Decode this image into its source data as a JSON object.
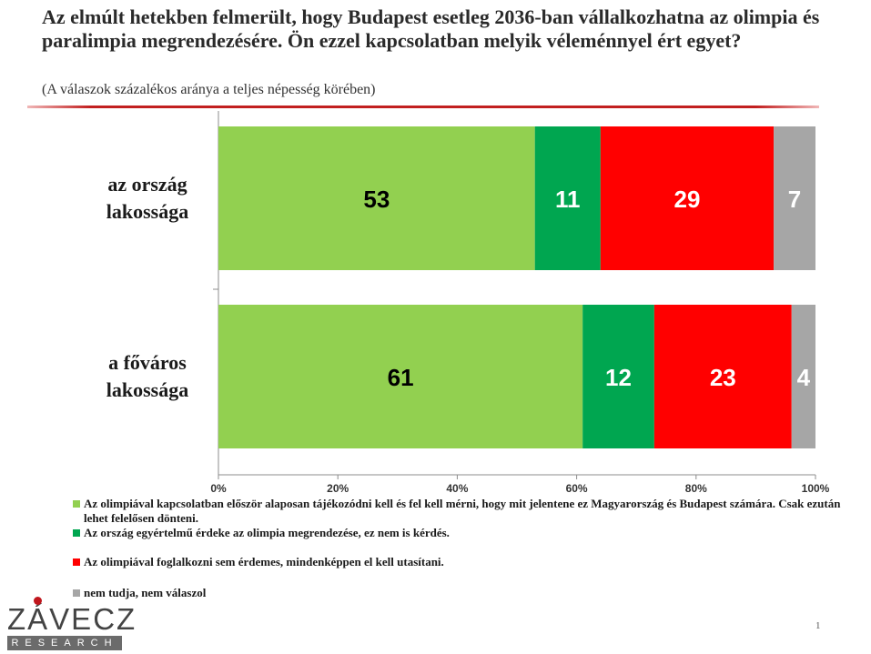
{
  "header": {
    "title": "Az elmúlt hetekben felmerült, hogy Budapest esetleg 2036-ban vállalkozhatna az olimpia és paralimpia megrendezésére. Ön ezzel kapcsolatban melyik véleménnyel ért egyet?",
    "subtitle": "(A válaszok százalékos aránya a teljes népesség körében)"
  },
  "chart_data": {
    "type": "bar",
    "orientation": "horizontal",
    "stacked": true,
    "categories": [
      "az ország lakossága",
      "a főváros lakossága"
    ],
    "category_lines": [
      [
        "az ország",
        "lakossága"
      ],
      [
        "a főváros",
        "lakossága"
      ]
    ],
    "series": [
      {
        "name": "Az olimpiával kapcsolatban először alaposan tájékozódni kell és fel kell mérni, hogy mit jelentene ez Magyarország és Budapest számára. Csak ezután lehet felelősen dönteni.",
        "values": [
          53,
          61
        ],
        "color": "#92d050",
        "label_color": "#000000"
      },
      {
        "name": "Az ország egyértelmű érdeke az olimpia megrendezése, ez nem is kérdés.",
        "values": [
          11,
          12
        ],
        "color": "#00a650",
        "label_color": "#ffffff"
      },
      {
        "name": "Az olimpiával foglalkozni sem érdemes, mindenképpen el kell utasítani.",
        "values": [
          29,
          23
        ],
        "color": "#ff0000",
        "label_color": "#ffffff"
      },
      {
        "name": "nem tudja, nem válaszol",
        "values": [
          7,
          4
        ],
        "color": "#a6a6a6",
        "label_color": "#ffffff"
      }
    ],
    "xlim": [
      0,
      100
    ],
    "xticks": [
      "0%",
      "20%",
      "40%",
      "60%",
      "80%",
      "100%"
    ],
    "xlabel": "",
    "ylabel": "",
    "legend_position": "bottom"
  },
  "logo": {
    "name": "ZÁVECZ",
    "sub": "RESEARCH"
  },
  "page_number": "1"
}
